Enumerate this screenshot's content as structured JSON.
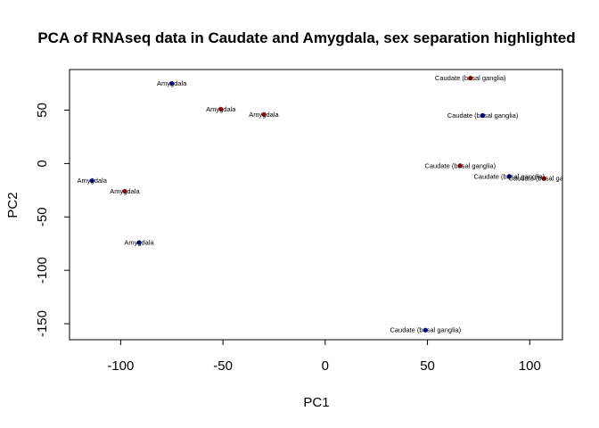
{
  "chart_data": {
    "type": "scatter",
    "title": "PCA of RNAseq data in Caudate and Amygdala, sex separation highlighted",
    "xlabel": "PC1",
    "ylabel": "PC2",
    "xlim": [
      -125,
      116
    ],
    "ylim": [
      -165,
      88
    ],
    "xticks": [
      -100,
      -50,
      0,
      50,
      100
    ],
    "yticks": [
      -150,
      -100,
      -50,
      0,
      50
    ],
    "xtick_labels": [
      "-100",
      "-50",
      "0",
      "50",
      "100"
    ],
    "ytick_labels": [
      "-150",
      "-100",
      "-50",
      "0",
      "50"
    ],
    "grid": false,
    "legend": "none",
    "colors": {
      "red": "#cc0000",
      "blue": "#0000cc"
    },
    "points": [
      {
        "x": -75,
        "y": 75,
        "label": "Amygdala",
        "color": "blue"
      },
      {
        "x": -51,
        "y": 51,
        "label": "Amygdala",
        "color": "red"
      },
      {
        "x": -30,
        "y": 46,
        "label": "Amygdala",
        "color": "red"
      },
      {
        "x": -114,
        "y": -16,
        "label": "Amygdala",
        "color": "blue"
      },
      {
        "x": -98,
        "y": -26,
        "label": "Amygdala",
        "color": "red"
      },
      {
        "x": -91,
        "y": -74,
        "label": "Amygdala",
        "color": "blue"
      },
      {
        "x": 71,
        "y": 80,
        "label": "Caudate (basal ganglia)",
        "color": "red"
      },
      {
        "x": 77,
        "y": 45,
        "label": "Caudate (basal ganglia)",
        "color": "blue"
      },
      {
        "x": 66,
        "y": -2,
        "label": "Caudate (basal ganglia)",
        "color": "red"
      },
      {
        "x": 90,
        "y": -12,
        "label": "Caudate (basal ganglia)",
        "color": "blue"
      },
      {
        "x": 107,
        "y": -14,
        "label": "Caudate (basal ganglia)",
        "color": "red"
      },
      {
        "x": 49,
        "y": -156,
        "label": "Caudate (basal ganglia)",
        "color": "blue"
      }
    ]
  }
}
